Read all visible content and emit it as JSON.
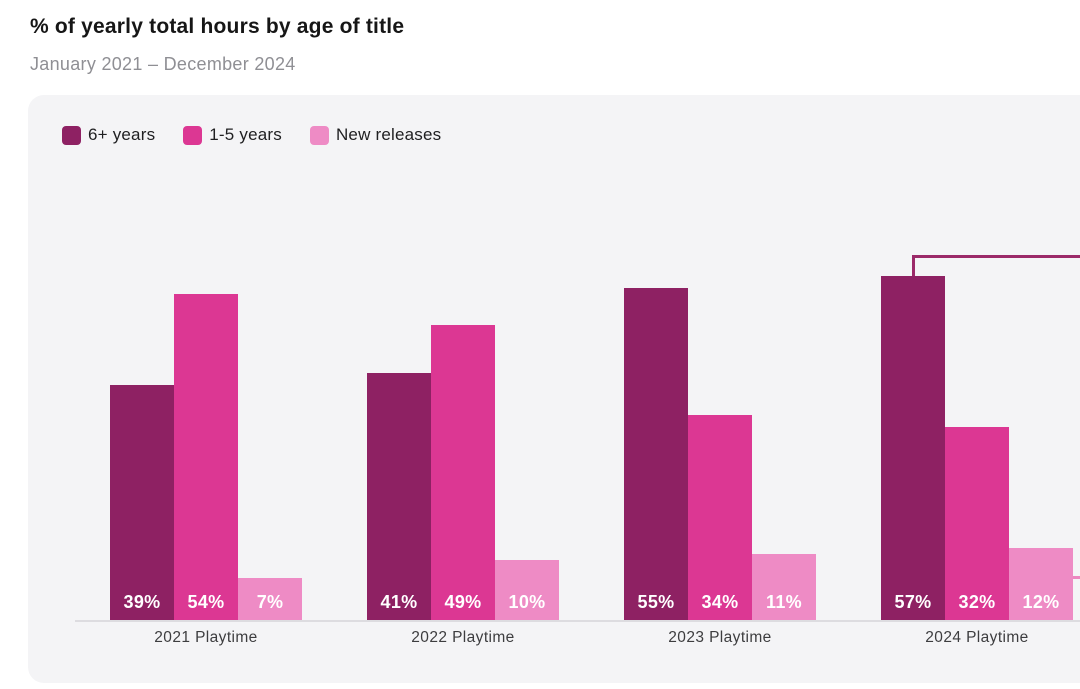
{
  "header": {
    "title": "% of yearly total hours by age of title",
    "subtitle": "January 2021 – December 2024"
  },
  "colors": {
    "six_plus_years": "#8e2163",
    "one_to_five_years": "#dc3793",
    "new_releases": "#ee8bc5",
    "panel_background": "#f4f4f6",
    "axis_line": "#dddce0",
    "callout_line_dark": "#9b2a69",
    "callout_line_pink": "#ec87c0",
    "value_label_text": "#ffffff"
  },
  "legend": {
    "items": [
      {
        "label": "6+ years",
        "color": "#8e2163"
      },
      {
        "label": "1-5 years",
        "color": "#dc3793"
      },
      {
        "label": "New releases",
        "color": "#ee8bc5"
      }
    ]
  },
  "chart_data": {
    "type": "bar",
    "title": "% of yearly total hours by age of title",
    "subtitle": "January 2021 – December 2024",
    "categories": [
      "2021 Playtime",
      "2022 Playtime",
      "2023 Playtime",
      "2024 Playtime"
    ],
    "series": [
      {
        "name": "6+ years",
        "color": "#8e2163",
        "values": [
          39,
          41,
          55,
          57
        ]
      },
      {
        "name": "1-5 years",
        "color": "#dc3793",
        "values": [
          54,
          49,
          34,
          32
        ]
      },
      {
        "name": "New releases",
        "color": "#ee8bc5",
        "values": [
          7,
          10,
          11,
          12
        ]
      }
    ],
    "value_labels": [
      [
        "39%",
        "54%",
        "7%"
      ],
      [
        "41%",
        "49%",
        "10%"
      ],
      [
        "55%",
        "34%",
        "11%"
      ],
      [
        "57%",
        "32%",
        "12%"
      ]
    ],
    "value_suffix": "%",
    "ylim": [
      0,
      60
    ],
    "grid": false,
    "legend_position": "top-left",
    "annotations": [
      "callout line rising from top of 2024 6+ years bar, running right off the cropped edge",
      "pink callout line fragment at right edge next to 2024 New releases bar (chart cropped)"
    ]
  }
}
